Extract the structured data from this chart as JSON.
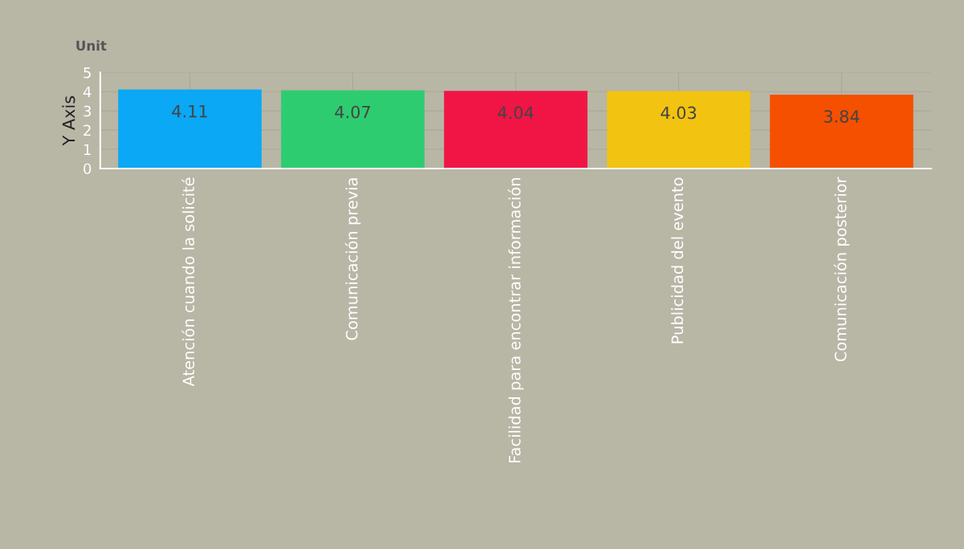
{
  "chart_data": {
    "type": "bar",
    "ylabel": "Y Axis",
    "annotations": [
      "Unit"
    ],
    "categories": [
      "Atención cuando la solicité",
      "Comunicación previa",
      "Facilidad para encontrar información",
      "Publicidad del evento",
      "Comunicación posterior"
    ],
    "values": [
      4.11,
      4.07,
      4.04,
      4.03,
      3.84
    ],
    "colors": [
      "#0aa8f5",
      "#2ecc71",
      "#f01545",
      "#f2c311",
      "#f55000"
    ],
    "ylim": [
      0,
      5
    ],
    "yticks": [
      0,
      1,
      2,
      3,
      4,
      5
    ],
    "grid": true,
    "data_labels": true
  }
}
